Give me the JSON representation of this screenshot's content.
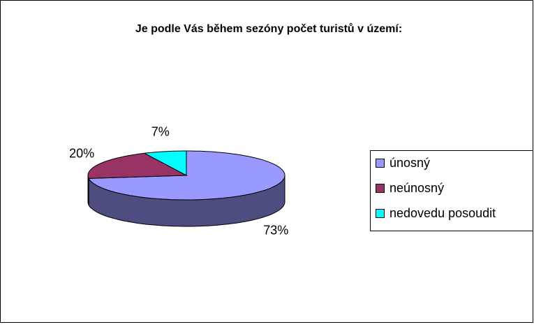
{
  "chart_data": {
    "type": "pie",
    "title": "Je podle Vás během sezóny počet turistů v území:",
    "categories": [
      "únosný",
      "neúnosný",
      "nedovedu posoudit"
    ],
    "values": [
      73,
      20,
      7
    ],
    "value_labels": [
      "73%",
      "20%",
      "7%"
    ],
    "colors": [
      "#9999ff",
      "#993366",
      "#00ffff"
    ],
    "legend": "right"
  }
}
